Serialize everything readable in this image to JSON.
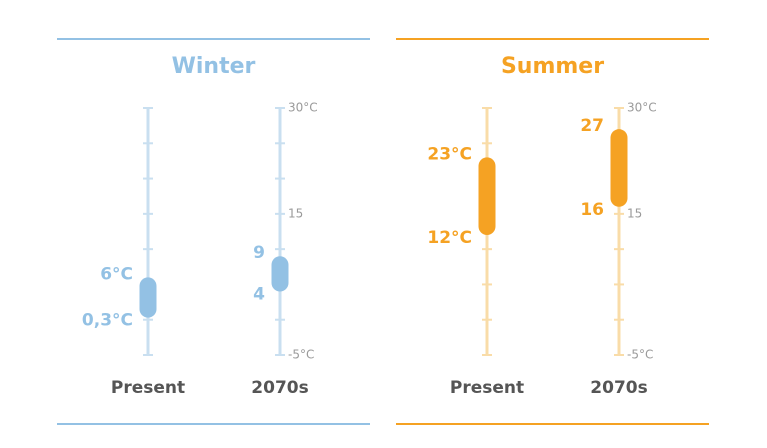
{
  "chart_data": [
    {
      "type": "range",
      "title": "Winter",
      "categories": [
        "Present",
        "2070s"
      ],
      "series": [
        {
          "values": [
            0.3,
            4
          ],
          "value_labels": [
            "0,3°C",
            "4"
          ]
        },
        {
          "values": [
            6,
            9
          ],
          "value_labels": [
            "6°C",
            "9"
          ]
        }
      ],
      "color": "#93c1e4",
      "axis_color": "#c9dff0",
      "ylim": [
        -5,
        30
      ],
      "yticks": [
        {
          "value": -5,
          "label": "-5°C"
        },
        15,
        {
          "value": 30,
          "label": "30°C"
        }
      ],
      "minor_yticks": [
        0,
        5,
        10,
        20,
        25
      ]
    },
    {
      "type": "range",
      "title": "Summer",
      "categories": [
        "Present",
        "2070s"
      ],
      "series": [
        {
          "values": [
            12,
            16
          ],
          "value_labels": [
            "12°C",
            "16"
          ]
        },
        {
          "values": [
            23,
            27
          ],
          "value_labels": [
            "23°C",
            "27"
          ]
        }
      ],
      "color": "#f5a223",
      "axis_color": "#f9dca8",
      "ylim": [
        -5,
        30
      ],
      "yticks": [
        {
          "value": -5,
          "label": "-5°C"
        },
        15,
        {
          "value": 30,
          "label": "30°C"
        }
      ],
      "minor_yticks": [
        0,
        5,
        10,
        20,
        25
      ]
    }
  ]
}
